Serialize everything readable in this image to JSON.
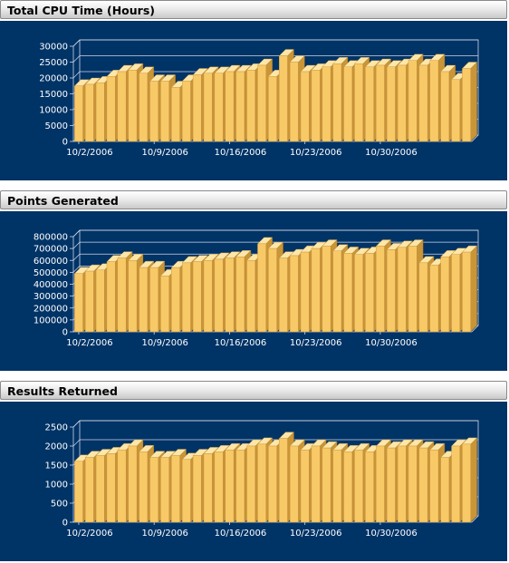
{
  "chart_data": [
    {
      "type": "bar",
      "title": "Total CPU Time (Hours)",
      "x_tick_labels": [
        "10/2/2006",
        "10/9/2006",
        "10/16/2006",
        "10/23/2006",
        "10/30/2006"
      ],
      "y_ticks": [
        "0",
        "5000",
        "10000",
        "15000",
        "20000",
        "25000",
        "30000"
      ],
      "ylim": [
        0,
        30000
      ],
      "grid": true,
      "colors": {
        "bar_front": "#f8c967",
        "bar_top": "#fde6a8",
        "bar_side": "#c99536",
        "background": "#003366"
      },
      "values": [
        17500,
        18000,
        18500,
        20500,
        22000,
        22500,
        21500,
        19000,
        19000,
        17000,
        19000,
        21000,
        21500,
        21500,
        22000,
        22000,
        22500,
        24000,
        20500,
        27000,
        25000,
        22000,
        22500,
        23500,
        24500,
        23500,
        24500,
        23500,
        24000,
        23500,
        24000,
        25500,
        24000,
        25500,
        22000,
        19500,
        23000
      ]
    },
    {
      "type": "bar",
      "title": "Points Generated",
      "x_tick_labels": [
        "10/2/2006",
        "10/9/2006",
        "10/16/2006",
        "10/23/2006",
        "10/30/2006"
      ],
      "y_ticks": [
        "0",
        "100000",
        "200000",
        "300000",
        "400000",
        "500000",
        "600000",
        "700000",
        "800000"
      ],
      "ylim": [
        0,
        800000
      ],
      "grid": true,
      "colors": {
        "bar_front": "#f8c967",
        "bar_top": "#fde6a8",
        "bar_side": "#c99536",
        "background": "#003366"
      },
      "values": [
        490000,
        510000,
        520000,
        590000,
        620000,
        600000,
        540000,
        540000,
        470000,
        540000,
        580000,
        590000,
        600000,
        610000,
        620000,
        630000,
        600000,
        740000,
        700000,
        620000,
        640000,
        670000,
        700000,
        720000,
        680000,
        660000,
        650000,
        660000,
        720000,
        690000,
        710000,
        720000,
        580000,
        560000,
        630000,
        650000,
        670000
      ]
    },
    {
      "type": "bar",
      "title": "Results Returned",
      "x_tick_labels": [
        "10/2/2006",
        "10/9/2006",
        "10/16/2006",
        "10/23/2006",
        "10/30/2006"
      ],
      "y_ticks": [
        "0",
        "500",
        "1000",
        "1500",
        "2000",
        "2500"
      ],
      "ylim": [
        0,
        2500
      ],
      "grid": true,
      "colors": {
        "bar_front": "#f8c967",
        "bar_top": "#fde6a8",
        "bar_side": "#c99536",
        "background": "#003366"
      },
      "values": [
        1600,
        1700,
        1750,
        1800,
        1900,
        2000,
        1850,
        1700,
        1700,
        1750,
        1650,
        1750,
        1800,
        1850,
        1900,
        1900,
        2000,
        2050,
        2000,
        2200,
        2000,
        1900,
        2000,
        1950,
        1900,
        1850,
        1900,
        1850,
        2000,
        1950,
        2000,
        2000,
        1950,
        1900,
        1700,
        2000,
        2050
      ]
    }
  ]
}
